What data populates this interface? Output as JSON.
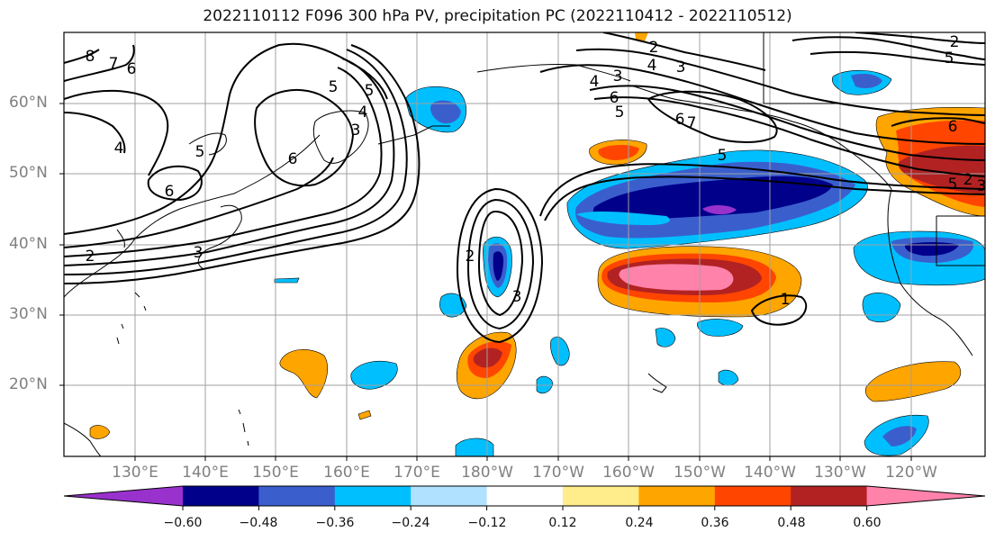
{
  "title": "2022110112 F096 300 hPa PV, precipitation PC (2022110412 - 2022110512)",
  "lat_labels": [
    "60°N",
    "50°N",
    "40°N",
    "30°N",
    "20°N"
  ],
  "lon_labels": [
    "130°E",
    "140°E",
    "150°E",
    "160°E",
    "170°E",
    "180°W",
    "170°W",
    "160°W",
    "150°W",
    "140°W",
    "130°W",
    "120°W"
  ],
  "colorbar": {
    "colors": [
      "#9932cc",
      "#00008b",
      "#3a5fcd",
      "#00bfff",
      "#b0e2ff",
      "#ffffff",
      "#ffec8b",
      "#ffa500",
      "#ff4500",
      "#b22222",
      "#ff82ab"
    ],
    "labels": [
      "−0.60",
      "−0.48",
      "−0.36",
      "−0.24",
      "−0.12",
      "0.12",
      "0.24",
      "0.36",
      "0.48",
      "0.60"
    ]
  },
  "contour_labels": [
    "8",
    "7",
    "6",
    "5",
    "4",
    "3",
    "2",
    "5",
    "6",
    "6",
    "5",
    "4",
    "3",
    "2",
    "3",
    "2",
    "4",
    "3",
    "5",
    "6",
    "7",
    "6",
    "5",
    "4",
    "3",
    "2",
    "5",
    "6",
    "5",
    "2",
    "3",
    "1"
  ]
}
